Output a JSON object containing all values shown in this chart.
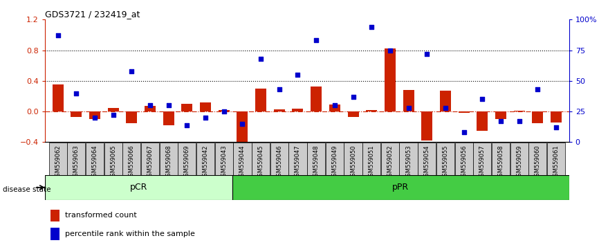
{
  "title": "GDS3721 / 232419_at",
  "samples": [
    "GSM559062",
    "GSM559063",
    "GSM559064",
    "GSM559065",
    "GSM559066",
    "GSM559067",
    "GSM559068",
    "GSM559069",
    "GSM559042",
    "GSM559043",
    "GSM559044",
    "GSM559045",
    "GSM559046",
    "GSM559047",
    "GSM559048",
    "GSM559049",
    "GSM559050",
    "GSM559051",
    "GSM559052",
    "GSM559053",
    "GSM559054",
    "GSM559055",
    "GSM559056",
    "GSM559057",
    "GSM559058",
    "GSM559059",
    "GSM559060",
    "GSM559061"
  ],
  "transformed_count": [
    0.35,
    -0.07,
    -0.1,
    0.05,
    -0.15,
    0.07,
    -0.18,
    0.1,
    0.12,
    0.02,
    -0.5,
    0.3,
    0.03,
    0.04,
    0.33,
    0.09,
    -0.07,
    0.02,
    0.82,
    0.28,
    -0.38,
    0.27,
    -0.02,
    -0.25,
    -0.1,
    0.01,
    -0.15,
    -0.14
  ],
  "percentile_rank": [
    0.87,
    0.4,
    0.2,
    0.22,
    0.58,
    0.3,
    0.3,
    0.14,
    0.2,
    0.25,
    0.15,
    0.68,
    0.43,
    0.55,
    0.83,
    0.3,
    0.37,
    0.94,
    0.75,
    0.28,
    0.72,
    0.28,
    0.08,
    0.35,
    0.17,
    0.17,
    0.43,
    0.12
  ],
  "pcr_count": 10,
  "ppr_count": 18,
  "ylim_left": [
    -0.4,
    1.2
  ],
  "ylim_right": [
    0.0,
    1.0
  ],
  "bar_color": "#cc2200",
  "dot_color": "#0000cc",
  "pcr_color": "#ccffcc",
  "ppr_color": "#44cc44",
  "tick_bg_color": "#cccccc",
  "dotted_line_color": "#000000",
  "zero_line_color": "#cc2200",
  "background_color": "#ffffff",
  "legend_red": "transformed count",
  "legend_blue": "percentile rank within the sample",
  "disease_state_label": "disease state",
  "pcr_label": "pCR",
  "ppr_label": "pPR",
  "left_yticks": [
    -0.4,
    0.0,
    0.4,
    0.8,
    1.2
  ],
  "right_yticks": [
    0.0,
    0.25,
    0.5,
    0.75,
    1.0
  ],
  "right_yticklabels": [
    "0",
    "25",
    "50",
    "75",
    "100%"
  ]
}
